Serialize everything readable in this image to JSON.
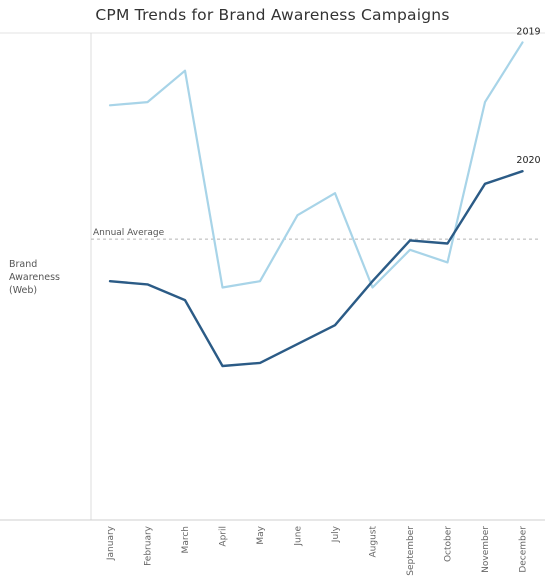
{
  "chart_data": {
    "type": "line",
    "title": "CPM Trends for Brand Awareness Campaigns",
    "row_label": "Brand\nAwareness\n(Web)",
    "categories": [
      "January",
      "February",
      "March",
      "April",
      "May",
      "June",
      "July",
      "August",
      "September",
      "October",
      "November",
      "December"
    ],
    "series": [
      {
        "name": "2019",
        "color": "#a8d4e8",
        "values": [
          6.6,
          6.65,
          7.15,
          3.7,
          3.8,
          4.85,
          5.2,
          3.7,
          4.3,
          4.1,
          6.65,
          7.6
        ]
      },
      {
        "name": "2020",
        "color": "#2b5b86",
        "values": [
          3.8,
          3.75,
          3.5,
          2.45,
          2.5,
          2.8,
          3.1,
          3.8,
          4.45,
          4.4,
          5.35,
          5.55
        ]
      }
    ],
    "reference_line": {
      "label": "Annual Average",
      "value": 4.47
    },
    "ylim": [
      0,
      7.75
    ],
    "grid": false
  }
}
